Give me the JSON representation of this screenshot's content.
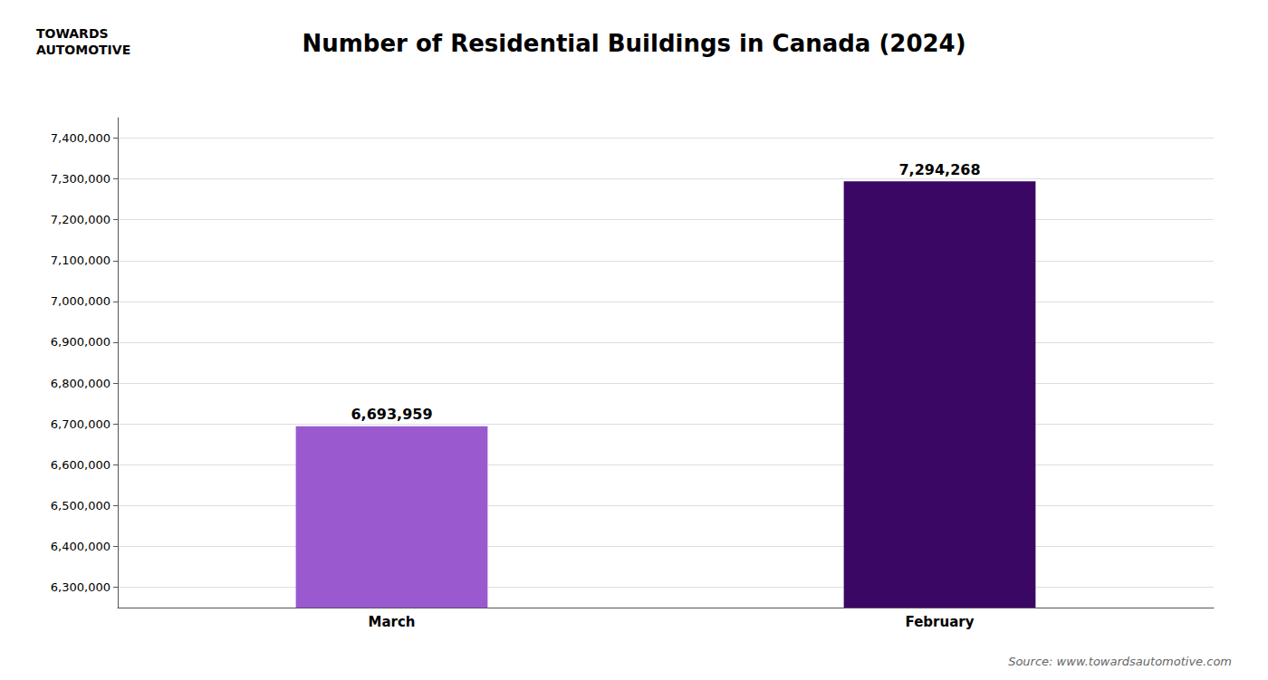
{
  "chart_data": {
    "type": "bar",
    "title": "Number of Residential Buildings in Canada (2024)",
    "categories": [
      "March",
      "February"
    ],
    "values": [
      6693959,
      7294268
    ],
    "value_labels": [
      "6,693,959",
      "7,294,268"
    ],
    "colors": [
      "#9b59d0",
      "#3b0764"
    ],
    "data_labels": true,
    "ylim": [
      6250000,
      7450000
    ],
    "yticks": [
      {
        "value": 6300000,
        "label": "6,300,000"
      },
      {
        "value": 6400000,
        "label": "6,400,000"
      },
      {
        "value": 6500000,
        "label": "6,500,000"
      },
      {
        "value": 6600000,
        "label": "6,600,000"
      },
      {
        "value": 6700000,
        "label": "6,700,000"
      },
      {
        "value": 6800000,
        "label": "6,800,000"
      },
      {
        "value": 6900000,
        "label": "6,900,000"
      },
      {
        "value": 7000000,
        "label": "7,000,000"
      },
      {
        "value": 7100000,
        "label": "7,100,000"
      },
      {
        "value": 7200000,
        "label": "7,200,000"
      },
      {
        "value": 7300000,
        "label": "7,300,000"
      },
      {
        "value": 7400000,
        "label": "7,400,000"
      }
    ],
    "grid": true,
    "annotations": [
      "TOWARDS\nAUTOMOTIVE",
      "Source: www.towardsautomotive.com"
    ]
  }
}
